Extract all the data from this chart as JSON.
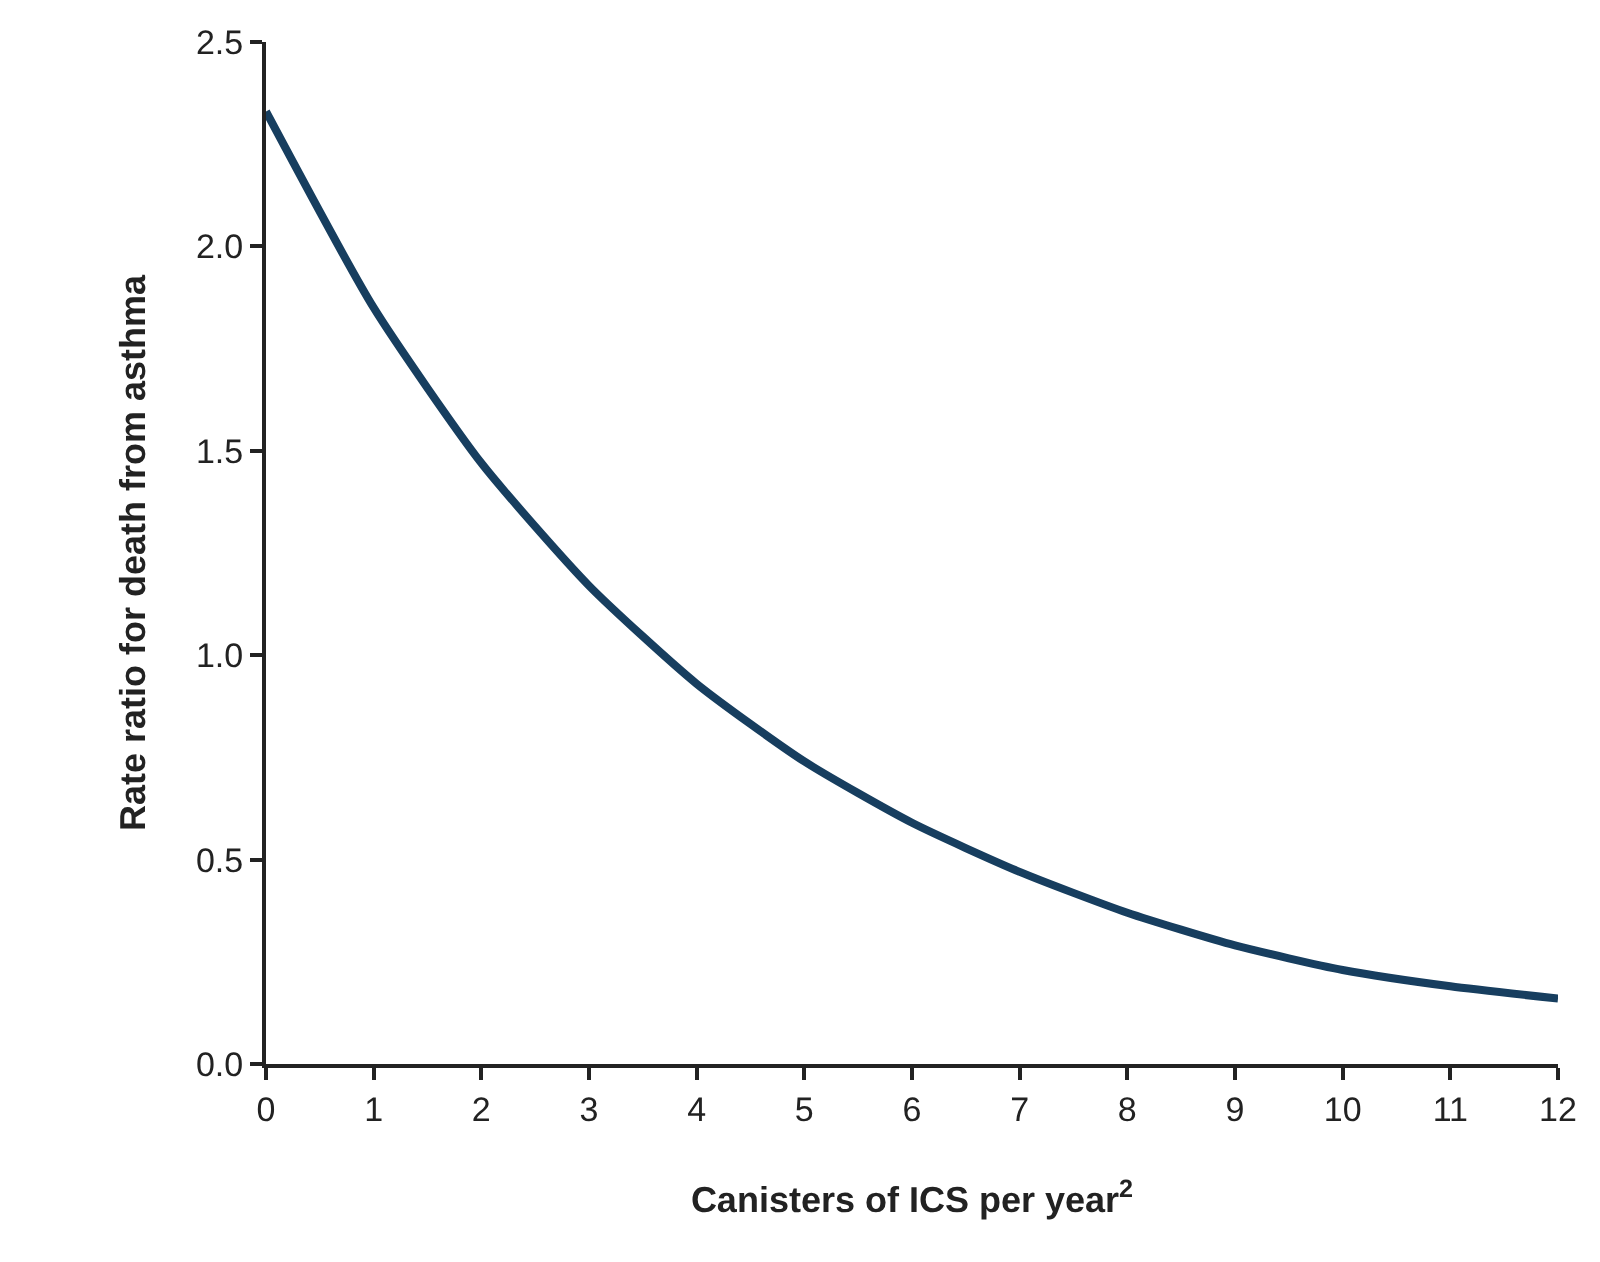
{
  "chart_data": {
    "type": "line",
    "xlabel": "Canisters of ICS per year$^{2}$",
    "ylabel": "Rate ratio for death from asthma",
    "x": [
      0,
      1,
      2,
      3,
      4,
      5,
      6,
      7,
      8,
      9,
      10,
      11,
      12
    ],
    "series": [
      {
        "color": "#173e5f",
        "values": [
          2.33,
          1.85,
          1.47,
          1.17,
          0.93,
          0.74,
          0.59,
          0.47,
          0.37,
          0.29,
          0.23,
          0.19,
          0.16
        ]
      }
    ],
    "xlim": [
      0,
      12
    ],
    "xticks": [
      0,
      1,
      2,
      3,
      4,
      5,
      6,
      7,
      8,
      9,
      10,
      11,
      12
    ],
    "ylim": [
      0,
      2.5
    ],
    "yticks": [
      {
        "value": 0,
        "label": "0.0"
      },
      {
        "value": 0.5,
        "label": "0.5"
      },
      {
        "value": 1,
        "label": "1.0"
      },
      {
        "value": 1.5,
        "label": "1.5"
      },
      {
        "value": 2,
        "label": "2.0"
      },
      {
        "value": 2.5,
        "label": "2.5"
      }
    ],
    "marker": "none",
    "line_style": "solid"
  }
}
